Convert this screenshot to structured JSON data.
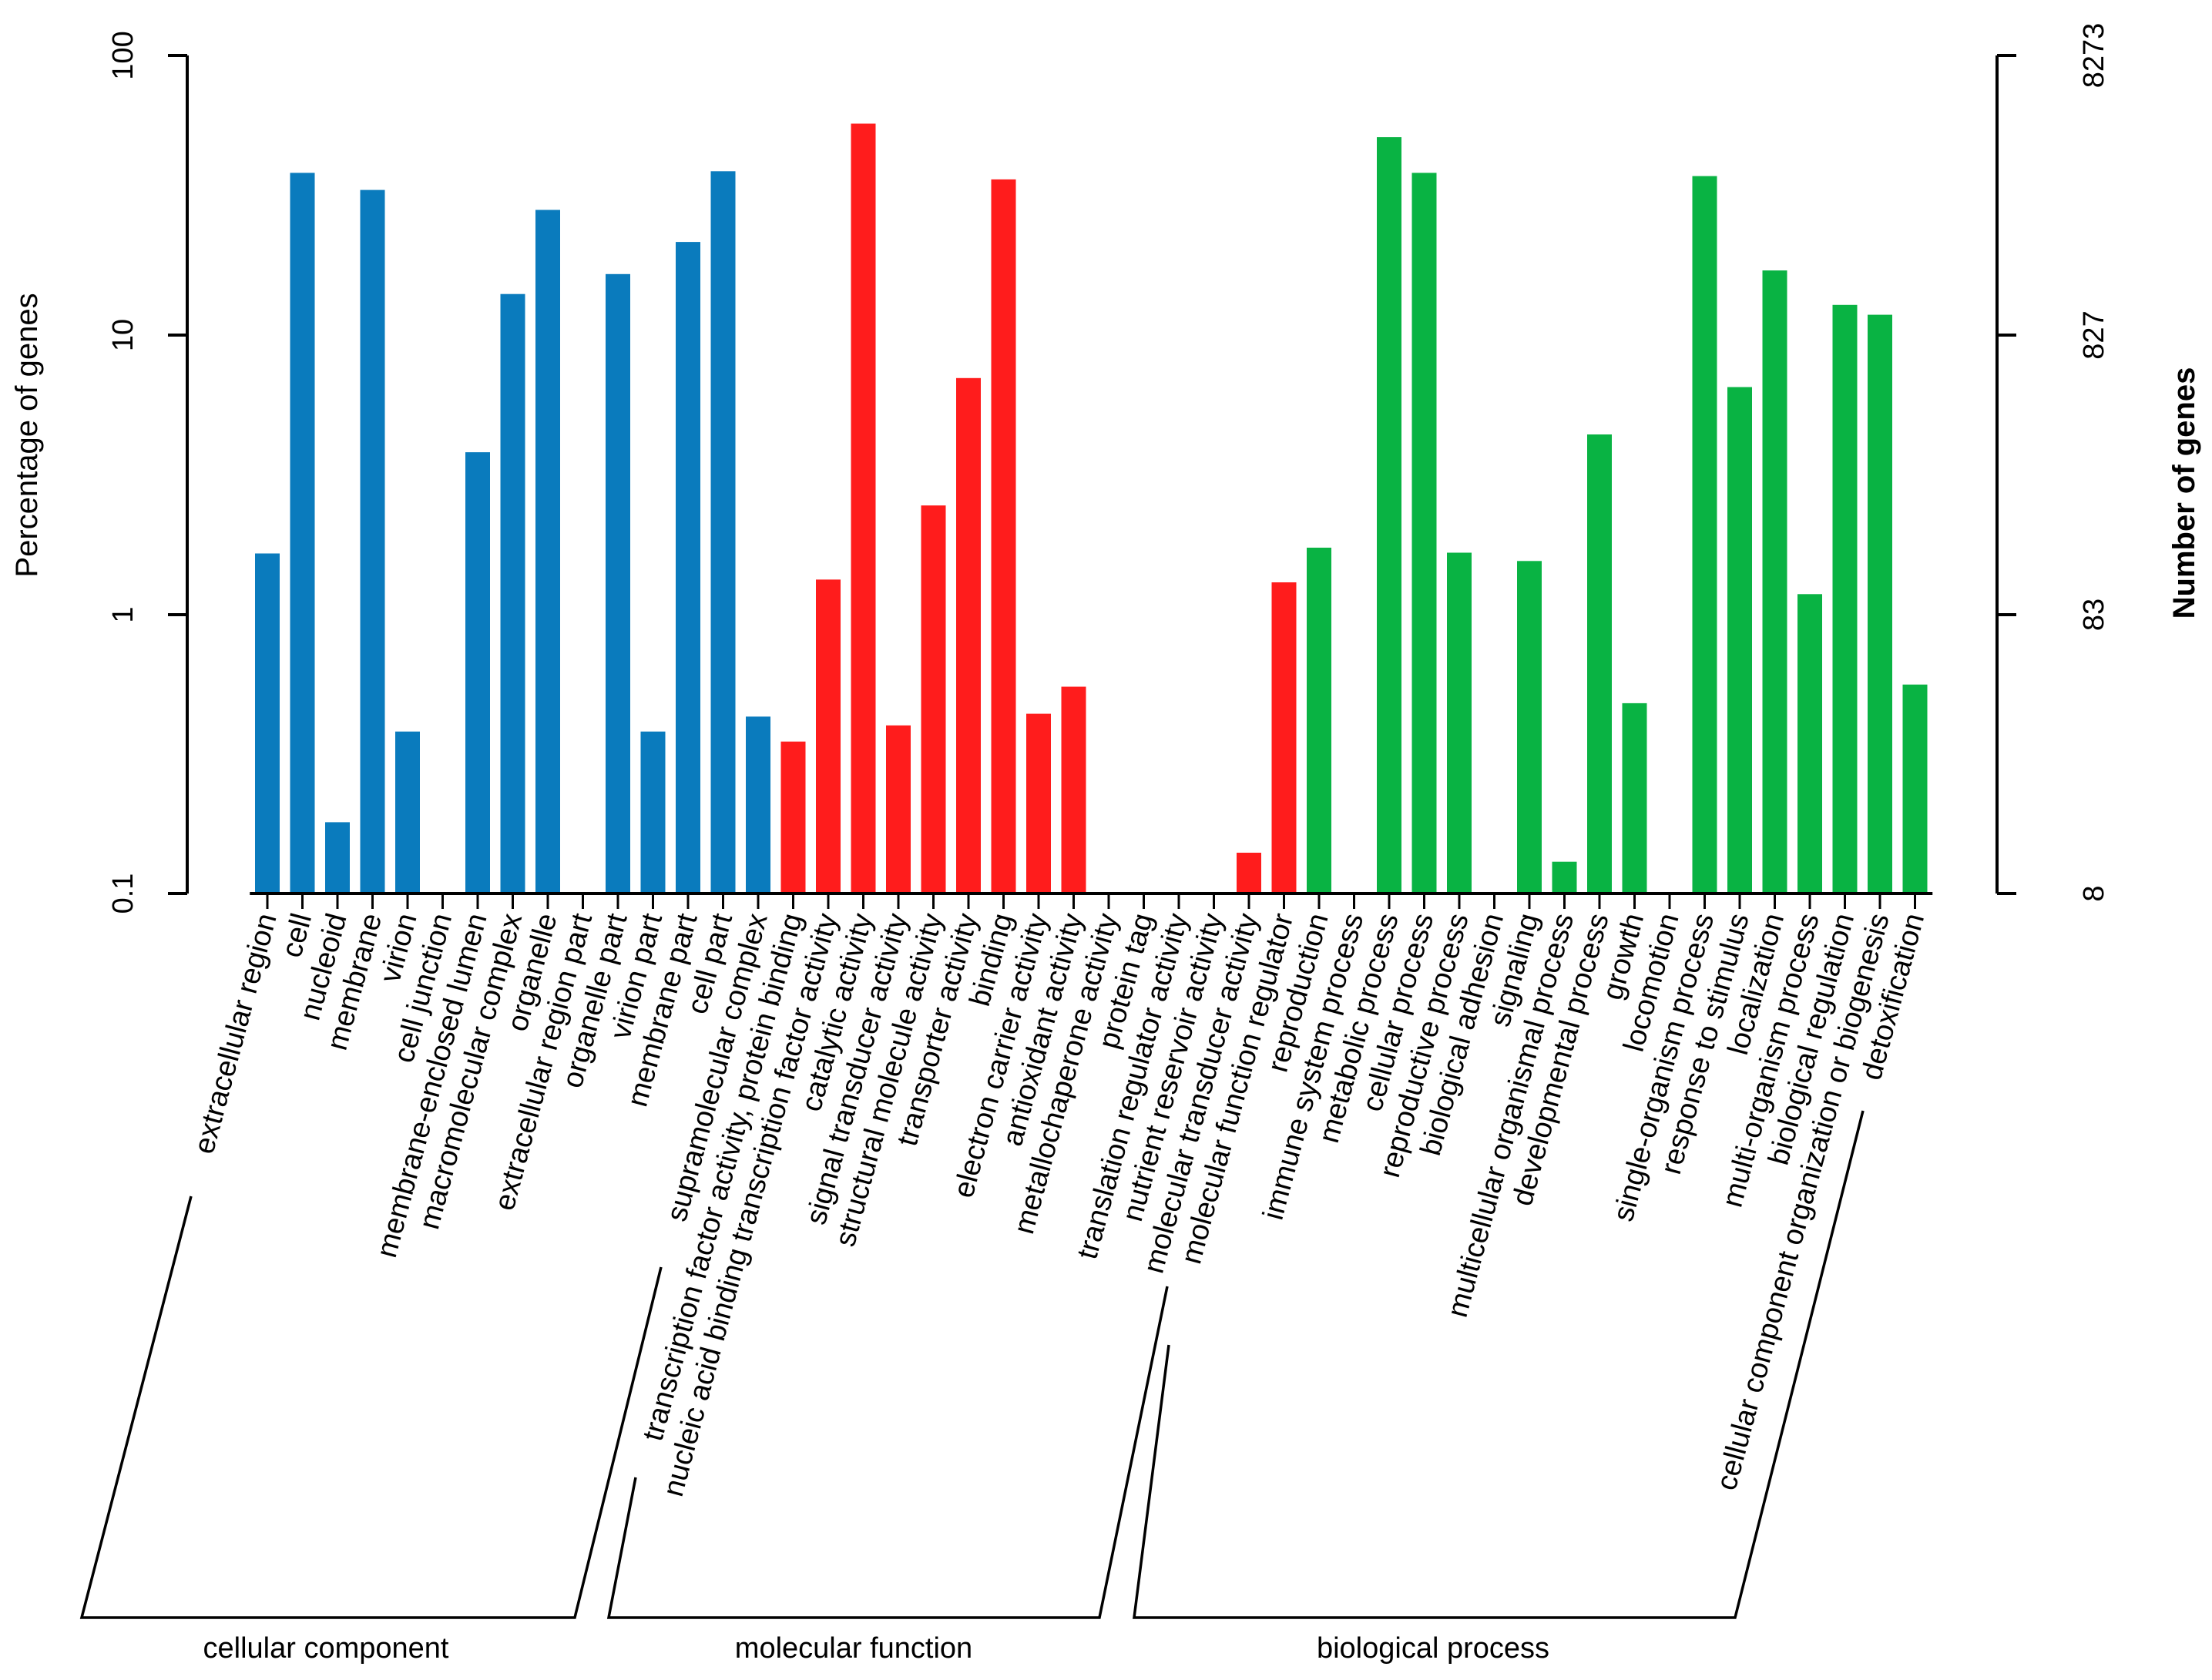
{
  "chart_data": {
    "type": "bar",
    "y_scale": "log",
    "ylabel": "Percentage of genes",
    "ylabel_right": "Number of genes",
    "ylim": [
      0.1,
      100
    ],
    "y_ticks": [
      "0.1",
      "1",
      "10",
      "100"
    ],
    "y_ticks_right": [
      "8",
      "83",
      "827",
      "8273"
    ],
    "grid": false,
    "groups": [
      {
        "name": "cellular component",
        "color": "#0a7bbd",
        "categories": [
          "extracellular region",
          "cell",
          "nucleoid",
          "membrane",
          "virion",
          "cell junction",
          "membrane-enclosed lumen",
          "macromolecular complex",
          "organelle",
          "extracellular region part",
          "organelle part",
          "virion part",
          "membrane part",
          "cell part",
          "supramolecular complex"
        ],
        "values": [
          1.65,
          38,
          0.18,
          33,
          0.38,
          null,
          3.8,
          14,
          28,
          null,
          16.5,
          0.38,
          21.5,
          38.5,
          0.43
        ]
      },
      {
        "name": "molecular function",
        "color": "#ff1c1c",
        "categories": [
          "transcription factor activity, protein binding",
          "nucleic acid binding transcription factor activity",
          "catalytic activity",
          "signal transducer activity",
          "structural molecule activity",
          "transporter activity",
          "binding",
          "electron carrier activity",
          "antioxidant activity",
          "metallochaperone activity",
          "protein tag",
          "translation regulator activity",
          "nutrient reservoir activity",
          "molecular transducer activity",
          "molecular function regulator"
        ],
        "values": [
          0.35,
          1.33,
          57,
          0.4,
          2.45,
          7,
          36,
          0.44,
          0.55,
          null,
          null,
          null,
          null,
          0.14,
          1.3
        ]
      },
      {
        "name": "biological process",
        "color": "#09b343",
        "categories": [
          "reproduction",
          "immune system process",
          "metabolic process",
          "cellular process",
          "reproductive process",
          "biological adhesion",
          "signaling",
          "multicellular organismal process",
          "developmental process",
          "growth",
          "locomotion",
          "single-organism process",
          "response to stimulus",
          "localization",
          "multi-organism process",
          "biological regulation",
          "cellular component organization or biogenesis",
          "detoxification"
        ],
        "values": [
          1.73,
          null,
          51,
          38,
          1.66,
          null,
          1.55,
          0.13,
          4.4,
          0.48,
          null,
          37,
          6.5,
          17,
          1.18,
          12.8,
          11.8,
          0.56
        ]
      }
    ]
  }
}
